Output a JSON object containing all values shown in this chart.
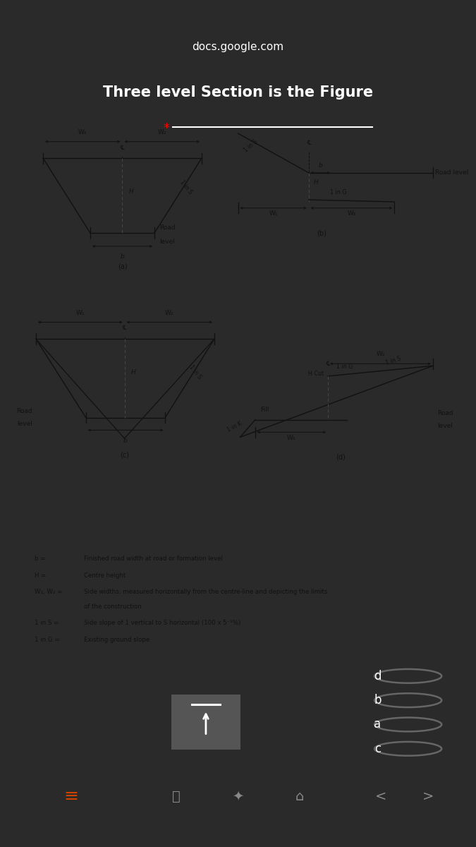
{
  "title": "Three level Section is the Figure",
  "bg_dark": "#2a2a2a",
  "bg_diagram": "#b5b5b5",
  "bg_panel": "#c8c8c8",
  "text_white": "#ffffff",
  "text_dark": "#111111",
  "text_gray": "#aaaaaa",
  "line_color": "#111111",
  "radio_options": [
    "d",
    "b",
    "a",
    "c"
  ],
  "legend_lines": [
    [
      "b = ",
      "Finished road width at road or formation level"
    ],
    [
      "H = ",
      "Centre height"
    ],
    [
      "W₁, W₂ = ",
      "Side widths, measured horizontally from the centre-line and depicting the limits"
    ],
    [
      "",
      "of the construction"
    ],
    [
      "1 in S = ",
      "Side slope of 1 vertical to S horizontal (100 x 5⁻¹%)"
    ],
    [
      "1 in G = ",
      "Existing ground slope"
    ]
  ],
  "phone_bar_color": "#1a1a1a",
  "browser_bar_color": "#333333",
  "bottom_bar_color": "#1a1a1a"
}
